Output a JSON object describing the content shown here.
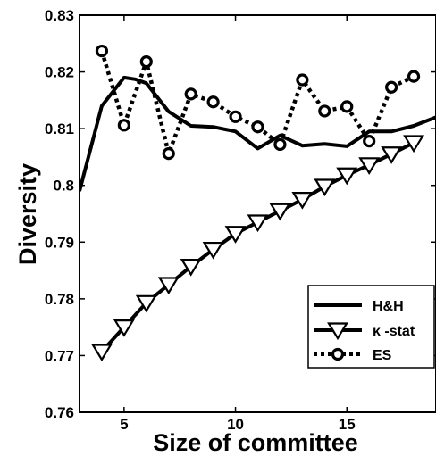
{
  "chart_data": {
    "type": "line",
    "xlabel": "Size of committee",
    "ylabel": "Diversity",
    "xlim": [
      3,
      19
    ],
    "ylim": [
      0.76,
      0.83
    ],
    "xticks": [
      5,
      10,
      15
    ],
    "yticks": [
      0.76,
      0.77,
      0.78,
      0.79,
      0.8,
      0.81,
      0.82,
      0.83
    ],
    "ytick_labels": [
      "0.76",
      "0.77",
      "0.78",
      "0.79",
      "0.8",
      "0.81",
      "0.82",
      "0.83"
    ],
    "xtick_labels": [
      "5",
      "10",
      "15"
    ],
    "grid": false,
    "legend_position": "bottom-right",
    "series": [
      {
        "name": "H&H",
        "style": "solid",
        "marker": "none",
        "color": "#000000",
        "x": [
          3,
          4,
          5,
          5.5,
          6,
          7,
          8,
          9,
          10,
          11,
          12,
          13,
          14,
          15,
          16,
          17,
          18,
          19
        ],
        "y": [
          0.799,
          0.814,
          0.819,
          0.8187,
          0.818,
          0.813,
          0.8105,
          0.8103,
          0.8095,
          0.8065,
          0.8088,
          0.807,
          0.8073,
          0.8069,
          0.8095,
          0.8095,
          0.8105,
          0.812
        ]
      },
      {
        "name": "κ -stat",
        "style": "solid",
        "marker": "triangle-down",
        "color": "#000000",
        "x": [
          4,
          5,
          6,
          7,
          8,
          9,
          10,
          11,
          12,
          13,
          14,
          15,
          16,
          17,
          18
        ],
        "y": [
          0.7707,
          0.775,
          0.7793,
          0.7825,
          0.7857,
          0.7887,
          0.7915,
          0.7935,
          0.7955,
          0.7975,
          0.7998,
          0.8018,
          0.8036,
          0.8055,
          0.8075
        ]
      },
      {
        "name": "ES",
        "style": "dotted",
        "marker": "circle",
        "color": "#000000",
        "x": [
          4,
          5,
          6,
          7,
          8,
          9,
          10,
          11,
          12,
          13,
          14,
          15,
          16,
          17,
          18
        ],
        "y": [
          0.8237,
          0.8106,
          0.8218,
          0.8056,
          0.8161,
          0.8147,
          0.8121,
          0.8103,
          0.8072,
          0.8186,
          0.8131,
          0.8139,
          0.8078,
          0.8173,
          0.8192
        ]
      }
    ]
  }
}
